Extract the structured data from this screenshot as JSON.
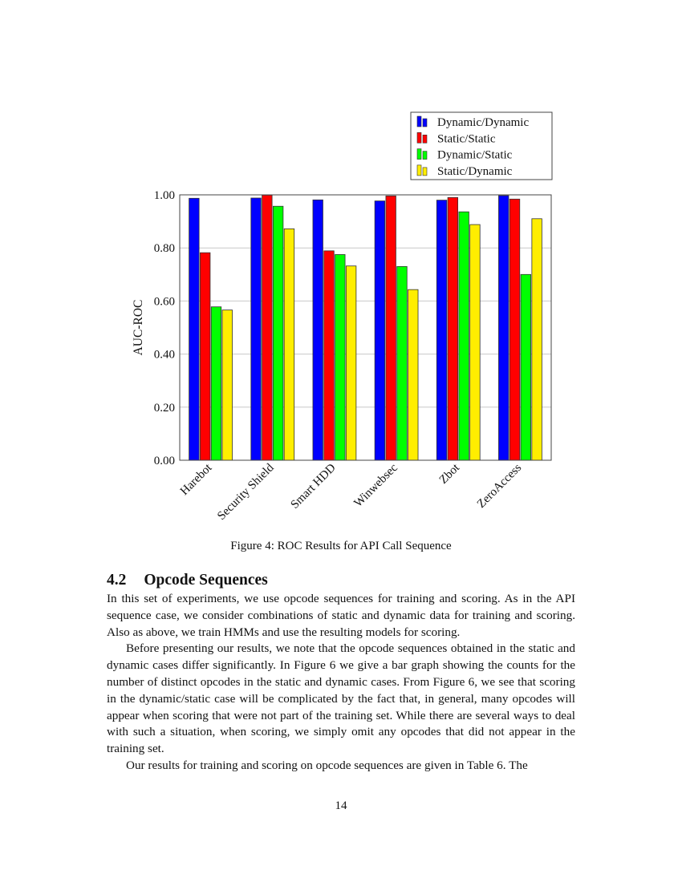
{
  "chart_data": {
    "type": "bar",
    "categories": [
      "Harebot",
      "Security Shield",
      "Smart HDD",
      "Winwebsec",
      "Zbot",
      "ZeroAccess"
    ],
    "series": [
      {
        "name": "Dynamic/Dynamic",
        "color": "#0000ff",
        "values": [
          0.987,
          0.988,
          0.981,
          0.977,
          0.98,
          0.997
        ]
      },
      {
        "name": "Static/Static",
        "color": "#ff0000",
        "values": [
          0.782,
          0.999,
          0.789,
          0.996,
          0.99,
          0.984
        ]
      },
      {
        "name": "Dynamic/Static",
        "color": "#00ff00",
        "values": [
          0.578,
          0.957,
          0.775,
          0.73,
          0.936,
          0.7
        ]
      },
      {
        "name": "Static/Dynamic",
        "color": "#ffee00",
        "values": [
          0.566,
          0.872,
          0.732,
          0.643,
          0.888,
          0.91
        ]
      }
    ],
    "ylabel": "AUC-ROC",
    "xlabel": "",
    "ylim": [
      0,
      1
    ],
    "yticks": [
      "0.00",
      "0.20",
      "0.40",
      "0.60",
      "0.80",
      "1.00"
    ],
    "grid": "horizontal",
    "legend_position": "top-right, outside above plot"
  },
  "caption": "Figure 4: ROC Results for API Call Sequence",
  "section": {
    "number": "4.2",
    "title": "Opcode Sequences"
  },
  "paragraphs": [
    "In this set of experiments, we use opcode sequences for training and scoring. As in the API sequence case, we consider combinations of static and dynamic data for training and scoring. Also as above, we train HMMs and use the resulting models for scoring.",
    "Before presenting our results, we note that the opcode sequences obtained in the static and dynamic cases differ significantly. In Figure 6 we give a bar graph showing the counts for the number of distinct opcodes in the static and dynamic cases. From Figure 6, we see that scoring in the dynamic/static case will be complicated by the fact that, in general, many opcodes will appear when scoring that were not part of the training set. While there are several ways to deal with such a situation, when scoring, we simply omit any opcodes that did not appear in the training set.",
    "Our results for training and scoring on opcode sequences are given in Table 6. The"
  ],
  "page_number": "14"
}
